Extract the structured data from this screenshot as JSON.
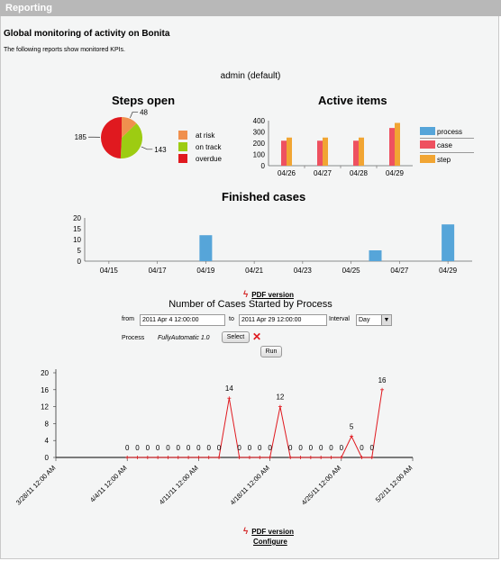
{
  "window": {
    "title": "Reporting"
  },
  "header": {
    "title": "Global monitoring of activity on Bonita",
    "subtitle": "The following reports show monitored KPIs.",
    "user": "admin (default)"
  },
  "steps_open": {
    "title": "Steps open",
    "legend": [
      {
        "label": "at risk",
        "color": "#f0904e"
      },
      {
        "label": "on track",
        "color": "#9dcc12"
      },
      {
        "label": "overdue",
        "color": "#e0191f"
      }
    ]
  },
  "active_items": {
    "title": "Active items",
    "legend": [
      {
        "label": "process",
        "color": "#56a5d9"
      },
      {
        "label": "case",
        "color": "#ee5160"
      },
      {
        "label": "step",
        "color": "#f1a533"
      }
    ]
  },
  "finished_cases": {
    "title": "Finished cases"
  },
  "pdf_link": {
    "label": "PDF version"
  },
  "cases_started": {
    "title": "Number of Cases Started by Process",
    "from_label": "from",
    "from_value": "2011 Apr 4 12:00:00",
    "to_label": "to",
    "to_value": "2011 Apr 29 12:00:00",
    "interval_label": "Interval",
    "interval_value": "Day",
    "process_label": "Process",
    "process_value": "FullyAutomatic 1.0",
    "select_label": "Select",
    "run_label": "Run"
  },
  "pdf_link_2": {
    "label": "PDF version"
  },
  "configure_link": {
    "label": "Configure"
  },
  "chart_data": [
    {
      "type": "pie",
      "title": "Steps open",
      "labels": [
        "at risk",
        "on track",
        "overdue"
      ],
      "values": [
        48,
        143,
        185
      ],
      "colors": [
        "#f0904e",
        "#9dcc12",
        "#e0191f"
      ]
    },
    {
      "type": "bar",
      "title": "Active items",
      "categories": [
        "04/26",
        "04/27",
        "04/28",
        "04/29"
      ],
      "series": [
        {
          "name": "process",
          "values": [
            0,
            0,
            0,
            0
          ]
        },
        {
          "name": "case",
          "values": [
            222,
            222,
            222,
            335
          ]
        },
        {
          "name": "step",
          "values": [
            250,
            250,
            250,
            380
          ]
        }
      ],
      "yticks": [
        0,
        100,
        200,
        300,
        400
      ],
      "ylim": [
        0,
        400
      ]
    },
    {
      "type": "bar",
      "title": "Finished cases",
      "xticks": [
        "04/15",
        "04/17",
        "04/19",
        "04/21",
        "04/23",
        "04/25",
        "04/27",
        "04/29"
      ],
      "xrange": [
        "04/14",
        "04/30"
      ],
      "points": [
        {
          "x": "04/19",
          "value": 12
        },
        {
          "x": "04/26",
          "value": 5
        },
        {
          "x": "04/29",
          "value": 17
        }
      ],
      "yticks": [
        0,
        5,
        10,
        15,
        20
      ],
      "ylim": [
        0,
        20
      ]
    },
    {
      "type": "line",
      "title": "Number of Cases Started by Process",
      "xticks": [
        "3/28/11 12:00 AM",
        "4/4/11 12:00 AM",
        "4/11/11 12:00 AM",
        "4/18/11 12:00 AM",
        "4/25/11 12:00 AM",
        "5/2/11 12:00 AM"
      ],
      "x": [
        "04/04",
        "04/05",
        "04/06",
        "04/07",
        "04/08",
        "04/09",
        "04/10",
        "04/11",
        "04/12",
        "04/13",
        "04/14",
        "04/15",
        "04/16",
        "04/17",
        "04/18",
        "04/19",
        "04/20",
        "04/21",
        "04/22",
        "04/23",
        "04/24",
        "04/25",
        "04/26",
        "04/27",
        "04/28",
        "04/29"
      ],
      "values": [
        0,
        0,
        0,
        0,
        0,
        0,
        0,
        0,
        0,
        0,
        14,
        0,
        0,
        0,
        0,
        12,
        0,
        0,
        0,
        0,
        0,
        0,
        5,
        0,
        0,
        16
      ],
      "yticks": [
        0,
        4,
        8,
        12,
        16,
        20
      ],
      "ylim": [
        0,
        20
      ],
      "color": "#e0191f"
    }
  ]
}
